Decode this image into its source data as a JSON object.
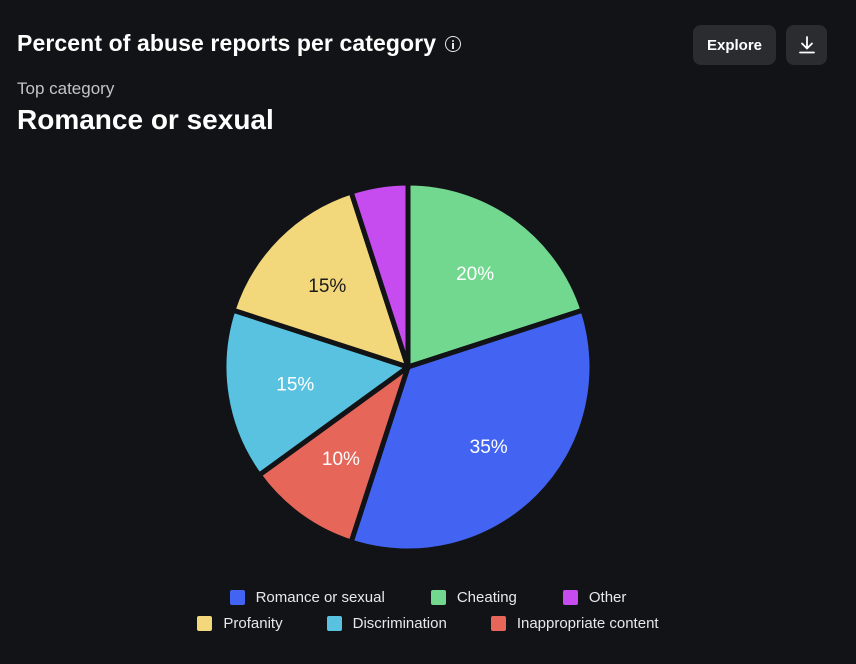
{
  "header": {
    "title": "Percent of abuse reports per category",
    "explore_label": "Explore"
  },
  "summary": {
    "top_label": "Top category",
    "top_value": "Romance or sexual"
  },
  "chart_data": {
    "type": "pie",
    "title": "Percent of abuse reports per category",
    "slices": [
      {
        "name": "Cheating",
        "value": 20,
        "label": "20%",
        "color": "#72d88f",
        "label_color": "#ffffff"
      },
      {
        "name": "Romance or sexual",
        "value": 35,
        "label": "35%",
        "color": "#4364f2",
        "label_color": "#ffffff"
      },
      {
        "name": "Inappropriate content",
        "value": 10,
        "label": "10%",
        "color": "#e6665a",
        "label_color": "#ffffff"
      },
      {
        "name": "Discrimination",
        "value": 15,
        "label": "15%",
        "color": "#5ac2e1",
        "label_color": "#ffffff"
      },
      {
        "name": "Profanity",
        "value": 15,
        "label": "15%",
        "color": "#f2d77b",
        "label_color": "#1a1a1a"
      },
      {
        "name": "Other",
        "value": 5,
        "label": "",
        "color": "#c64cf0",
        "label_color": "#ffffff"
      }
    ],
    "legend": {
      "position": "bottom",
      "entries": [
        "Romance or sexual",
        "Cheating",
        "Other",
        "Profanity",
        "Discrimination",
        "Inappropriate content"
      ]
    }
  },
  "legend_colors": {
    "romance": "#4364f2",
    "cheating": "#72d88f",
    "other": "#c64cf0",
    "profanity": "#f2d77b",
    "discrimination": "#5ac2e1",
    "inappropriate": "#e6665a"
  }
}
